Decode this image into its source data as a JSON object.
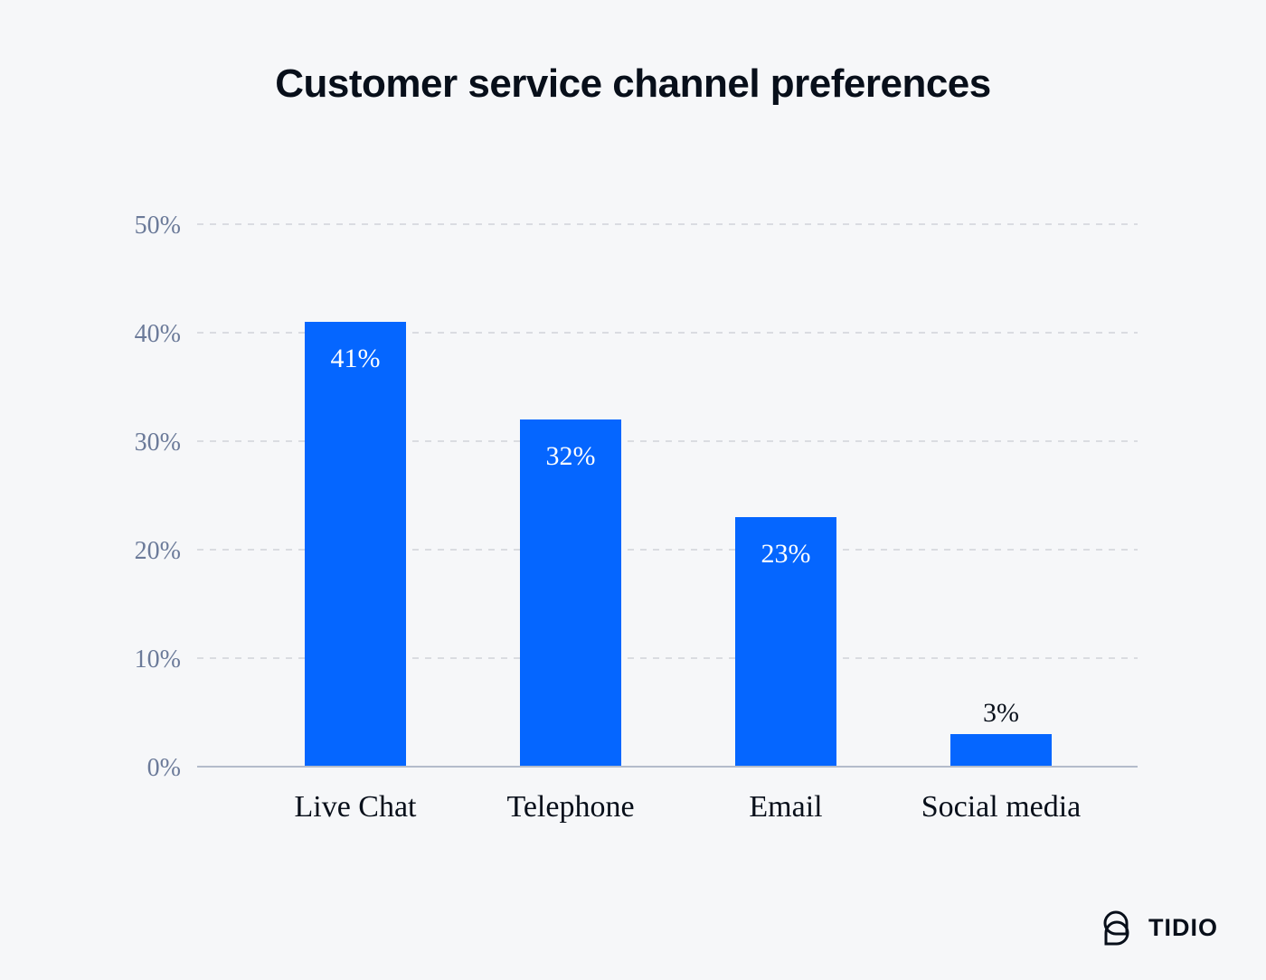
{
  "chart_data": {
    "type": "bar",
    "title": "Customer service channel preferences",
    "categories": [
      "Live Chat",
      "Telephone",
      "Email",
      "Social media"
    ],
    "values": [
      41,
      32,
      23,
      3
    ],
    "data_labels": [
      "41%",
      "32%",
      "23%",
      "3%"
    ],
    "xlabel": "",
    "ylabel": "",
    "ylim": [
      0,
      50
    ],
    "yticks": [
      0,
      10,
      20,
      30,
      40,
      50
    ],
    "ytick_labels": [
      "0%",
      "10%",
      "20%",
      "30%",
      "40%",
      "50%"
    ],
    "grid": true,
    "bar_color": "#0566ff"
  },
  "brand": {
    "name": "TIDIO"
  }
}
